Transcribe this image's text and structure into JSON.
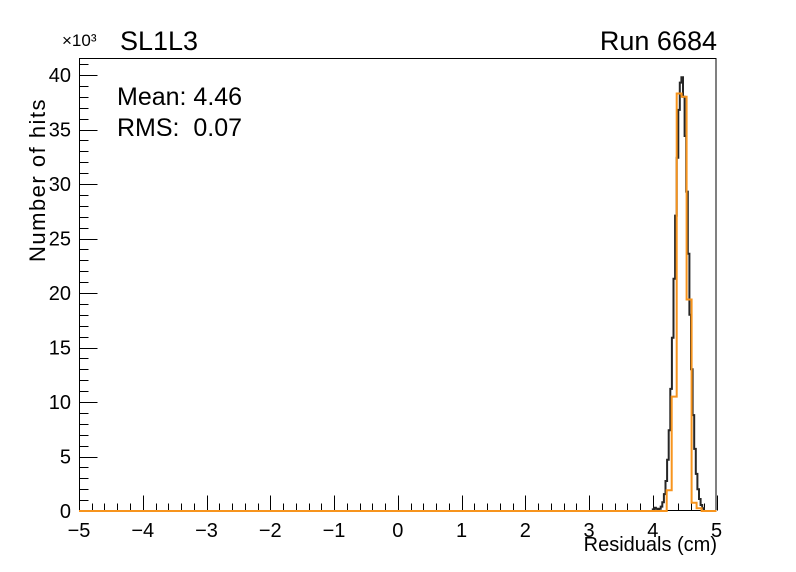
{
  "header": {
    "exponent": "×10³",
    "title": "SL1L3",
    "run": "Run 6684"
  },
  "stats_box": {
    "mean_line": "Mean: 4.46",
    "rms_line": "RMS:  0.07"
  },
  "chart_data": {
    "type": "line",
    "style": "histogram-step-outline",
    "title": "SL1L3",
    "corner_annotation": "Run 6684",
    "annotations": [
      "Mean: 4.46",
      "RMS:  0.07"
    ],
    "xlabel": "Residuals (cm)",
    "ylabel": "Number of hits",
    "y_scale_exponent": "×10³",
    "xlim": [
      -5,
      5
    ],
    "ylim": [
      0,
      41.56
    ],
    "grid": false,
    "legend": null,
    "stats": {
      "mean": 4.46,
      "rms": 0.07
    },
    "x_major_ticks": [
      -5,
      -4,
      -3,
      -2,
      -1,
      0,
      1,
      2,
      3,
      4,
      5
    ],
    "x_tick_labels": [
      "−5",
      "−4",
      "−3",
      "−2",
      "−1",
      "0",
      "1",
      "2",
      "3",
      "4",
      "5"
    ],
    "x_minor_step": 0.2,
    "y_major_ticks": [
      0,
      5,
      10,
      15,
      20,
      25,
      30,
      35,
      40
    ],
    "y_tick_labels": [
      "0",
      "5",
      "10",
      "15",
      "20",
      "25",
      "30",
      "35",
      "40"
    ],
    "y_minor_step": 1,
    "y_units": "thousand hits",
    "series": [
      {
        "name": "histogram-black",
        "color": "#262626",
        "line_width": 2,
        "bin_start": 4.0,
        "bin_width": 0.025,
        "values": [
          0.15,
          0.3,
          0.2,
          0.15,
          0.2,
          0.4,
          0.8,
          1.55,
          2.75,
          4.7,
          7.4,
          11.2,
          15.9,
          21.3,
          27.1,
          32.4,
          36.8,
          39.3,
          39.8,
          38.0,
          34.4,
          29.3,
          23.6,
          18.0,
          13.0,
          8.8,
          5.7,
          3.4,
          2.0,
          1.1,
          0.55,
          0.25
        ]
      },
      {
        "name": "histogram-orange",
        "color": "#f7941d",
        "line_width": 2,
        "bin_start": 4.21875,
        "bin_width": 0.078125,
        "values": [
          1.9,
          10.5,
          38.3,
          38.0,
          19.4,
          0.75,
          0.25
        ]
      }
    ]
  }
}
